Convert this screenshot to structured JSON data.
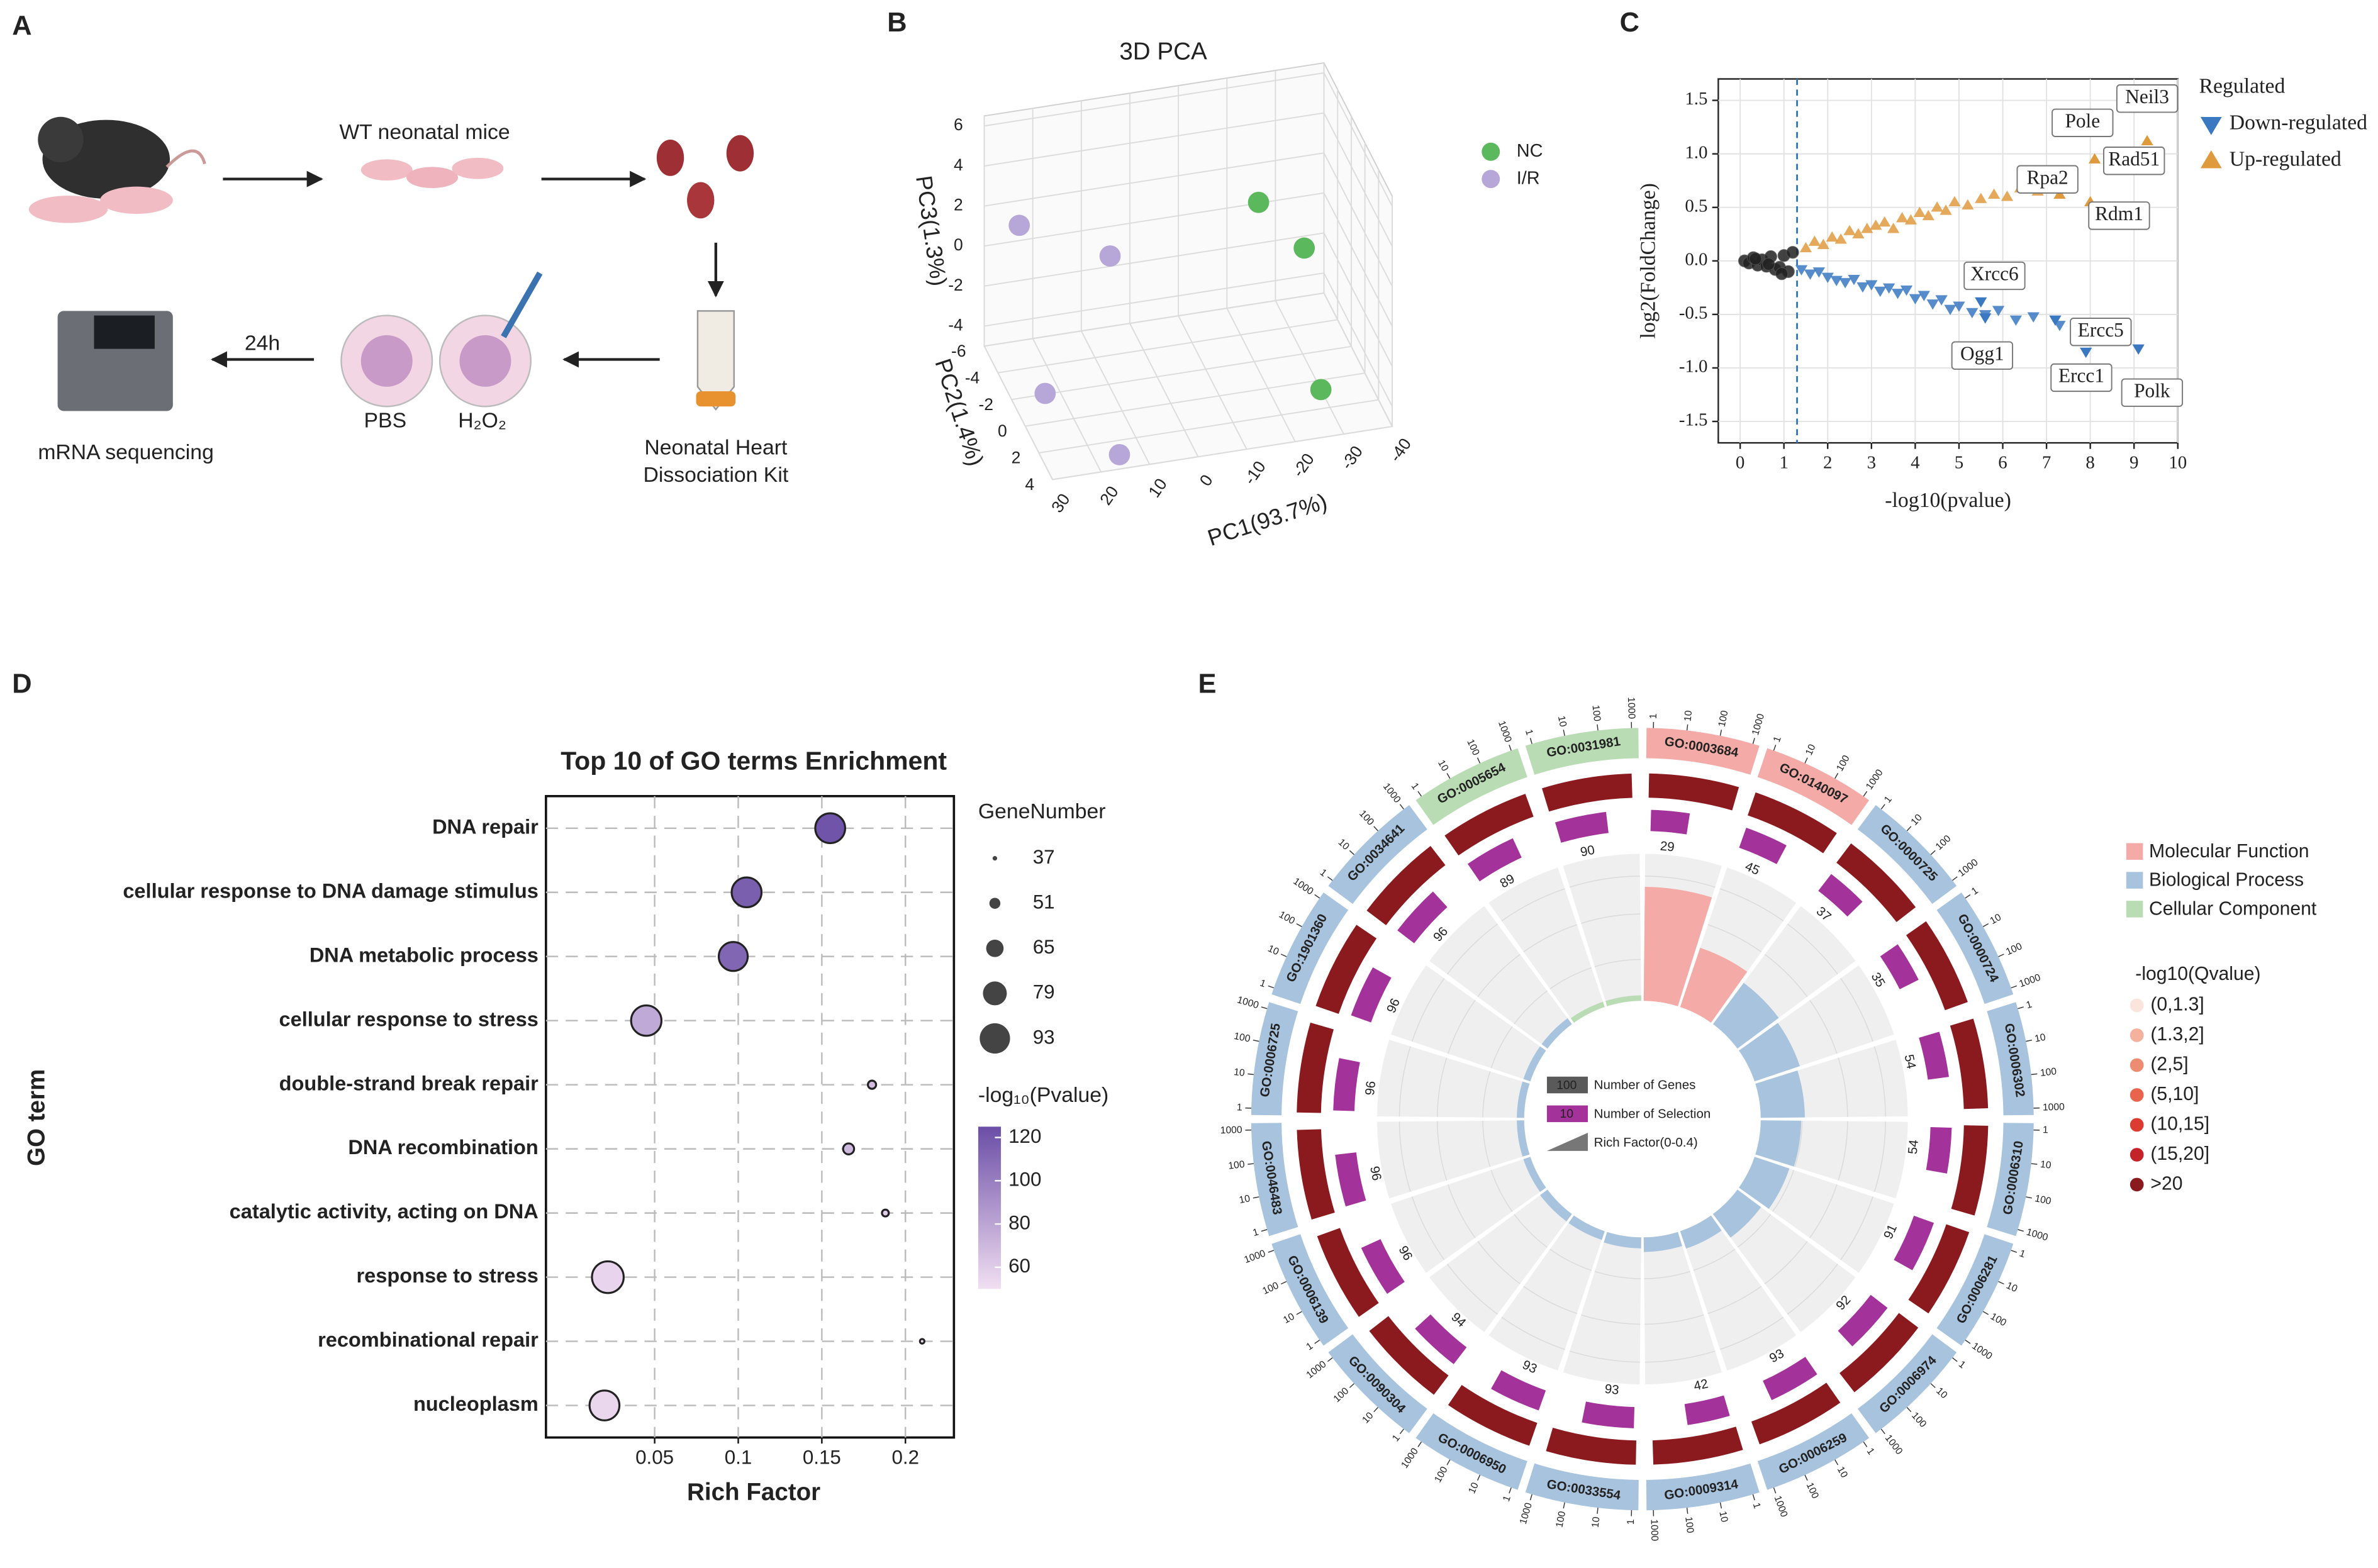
{
  "panel_labels": [
    "A",
    "B",
    "C",
    "D",
    "E"
  ],
  "workflow": {
    "mice": "WT neonatal mice",
    "kit": [
      "Neonatal Heart",
      "Dissociation Kit"
    ],
    "pbs": "PBS",
    "h2o2": "H₂O₂",
    "time": "24h",
    "seq": "mRNA sequencing"
  },
  "chart_data": [
    {
      "type": "scatter3d",
      "title": "3D PCA",
      "xlabel": "PC1(93.7%)",
      "ylabel": "PC2(1.4%)",
      "zlabel": "PC3(1.3%)",
      "xlim": [
        -40,
        30
      ],
      "ylim": [
        -6,
        4
      ],
      "zlim": [
        -5,
        6.5
      ],
      "xticks": [
        30,
        20,
        10,
        0,
        -10,
        -20,
        -30,
        -40
      ],
      "yticks": [
        -6,
        -4,
        -2,
        0,
        2,
        4
      ],
      "zticks": [
        -4,
        -2,
        0,
        2,
        4,
        6
      ],
      "series": [
        {
          "name": "NC",
          "color": "#5cb85c",
          "x": [
            -22.3,
            -28.9,
            -25.3
          ],
          "y": [
            -3,
            -1,
            4
          ],
          "z": [
            2.2,
            1.0,
            -2.6
          ]
        },
        {
          "name": "I/R",
          "color": "#b7a6d8",
          "x": [
            25.6,
            9.7,
            27.3,
            14.8
          ],
          "y": [
            -4,
            -2,
            1,
            3
          ],
          "z": [
            2.2,
            1.4,
            -2.8,
            -5.0
          ]
        }
      ]
    },
    {
      "type": "scatter",
      "xlabel": "-log10(pvalue)",
      "ylabel": "log2(FoldChange)",
      "xlim": [
        -0.5,
        10
      ],
      "ylim": [
        -1.7,
        1.7
      ],
      "xticks": [
        0,
        1,
        2,
        3,
        4,
        5,
        6,
        7,
        8,
        9,
        10
      ],
      "yticks": [
        -1.5,
        {
          "value": -1,
          "label": "-1.0"
        },
        -0.5,
        {
          "value": 0,
          "label": "0.0"
        },
        0.5,
        {
          "value": 1,
          "label": "1.0"
        },
        1.5
      ],
      "threshold_x": 1.3,
      "legend_title": "Regulated",
      "series": [
        {
          "color": "#222222",
          "marker": "circle",
          "x": [
            0.1,
            0.2,
            0.3,
            0.4,
            0.5,
            0.6,
            0.7,
            0.8,
            0.9,
            1.0,
            1.1,
            1.2,
            0.35,
            0.65,
            0.95
          ],
          "values": [
            0.0,
            -0.02,
            0.03,
            -0.04,
            0.01,
            -0.05,
            0.04,
            -0.08,
            -0.06,
            0.05,
            -0.1,
            0.08,
            0.02,
            -0.03,
            -0.12
          ]
        },
        {
          "name": "Down-regulated",
          "color": "#3a78c2",
          "marker": "triangle-down",
          "x": [
            1.4,
            1.6,
            1.8,
            2.0,
            2.2,
            2.4,
            2.6,
            2.8,
            3.0,
            3.2,
            3.4,
            3.6,
            3.8,
            4.0,
            4.2,
            4.4,
            4.6,
            4.8,
            5.0,
            5.3,
            5.6,
            5.9,
            6.3,
            6.7,
            7.3
          ],
          "values": [
            -0.08,
            -0.12,
            -0.1,
            -0.15,
            -0.18,
            -0.2,
            -0.17,
            -0.24,
            -0.22,
            -0.28,
            -0.25,
            -0.3,
            -0.27,
            -0.35,
            -0.32,
            -0.4,
            -0.36,
            -0.45,
            -0.42,
            -0.48,
            -0.5,
            -0.46,
            -0.55,
            -0.52,
            -0.6
          ]
        },
        {
          "name": "Up-regulated",
          "color": "#e09a3e",
          "marker": "triangle-up",
          "x": [
            1.5,
            1.7,
            1.9,
            2.1,
            2.3,
            2.5,
            2.7,
            2.9,
            3.1,
            3.3,
            3.5,
            3.7,
            3.9,
            4.1,
            4.3,
            4.5,
            4.7,
            4.9,
            5.2,
            5.5,
            5.8,
            6.1,
            6.4,
            6.8,
            7.2
          ],
          "values": [
            0.12,
            0.18,
            0.15,
            0.22,
            0.2,
            0.28,
            0.25,
            0.3,
            0.33,
            0.36,
            0.3,
            0.4,
            0.38,
            0.45,
            0.42,
            0.5,
            0.47,
            0.55,
            0.52,
            0.58,
            0.62,
            0.6,
            0.68,
            0.65,
            0.72
          ]
        }
      ],
      "annotations": [
        {
          "text": "Neil3",
          "x": 9.3,
          "y": 1.12,
          "series": 2
        },
        {
          "text": "Pole",
          "x": 8.1,
          "y": 0.95,
          "series": 2
        },
        {
          "text": "Rad51",
          "x": 9.0,
          "y": 0.85,
          "series": 2
        },
        {
          "text": "Rpa2",
          "x": 7.3,
          "y": 0.62,
          "series": 2
        },
        {
          "text": "Rdm1",
          "x": 8.0,
          "y": 0.55,
          "series": 2
        },
        {
          "text": "Xrcc6",
          "x": 5.5,
          "y": -0.38,
          "series": 1
        },
        {
          "text": "Ogg1",
          "x": 5.6,
          "y": -0.53,
          "series": 1
        },
        {
          "text": "Ercc5",
          "x": 7.2,
          "y": -0.55,
          "series": 1
        },
        {
          "text": "Ercc1",
          "x": 7.9,
          "y": -0.85,
          "series": 1
        },
        {
          "text": "Polk",
          "x": 9.1,
          "y": -0.82,
          "series": 1
        }
      ]
    },
    {
      "type": "bubble",
      "title": "Top 10 of GO terms Enrichment",
      "xlabel": "Rich Factor",
      "ylabel": "GO term",
      "categories": [
        "DNA repair",
        "cellular response to DNA damage stimulus",
        "DNA metabolic process",
        "cellular response to stress",
        "double-strand break repair",
        "DNA recombination",
        "catalytic activity, acting on DNA",
        "response to stress",
        "recombinational repair",
        "nucleoplasm"
      ],
      "values": [
        0.155,
        0.105,
        0.097,
        0.045,
        0.18,
        0.166,
        0.188,
        0.022,
        0.21,
        0.02
      ],
      "sizes": [
        92,
        92,
        90,
        93,
        45,
        51,
        42,
        96,
        37,
        92
      ],
      "pvalues": [
        122,
        116,
        112,
        78,
        68,
        70,
        60,
        55,
        52,
        54
      ],
      "xlim": [
        -0.015,
        0.229
      ],
      "xticks": [
        0.05,
        0.1,
        0.15,
        0.2
      ],
      "grid": true,
      "size_legend_title": "GeneNumber",
      "size_legend": [
        37,
        51,
        65,
        79,
        93
      ],
      "color_legend_title": "-log₁₀(Pvalue)",
      "color_lim": [
        50,
        125
      ],
      "color_ticks": [
        60,
        80,
        100,
        120
      ],
      "color_range": [
        "#f1dff2",
        "#6a4ea6"
      ]
    },
    {
      "type": "circos",
      "groups": [
        {
          "name": "Molecular Function",
          "color": "#f4aaa6"
        },
        {
          "name": "Biological Process",
          "color": "#a8c3dd"
        },
        {
          "name": "Cellular Component",
          "color": "#badcb4"
        }
      ],
      "terms": [
        "GO:0003684",
        "GO:0140097",
        "GO:0000725",
        "GO:0000724",
        "GO:0006302",
        "GO:0006310",
        "GO:0006281",
        "GO:0006974",
        "GO:0006259",
        "GO:0009314",
        "GO:0033554",
        "GO:0006950",
        "GO:0090304",
        "GO:0006139",
        "GO:0046483",
        "GO:0006725",
        "GO:1901360",
        "GO:0034641",
        "GO:0005654",
        "GO:0031981"
      ],
      "term_groups": [
        0,
        0,
        1,
        1,
        1,
        1,
        1,
        1,
        1,
        1,
        1,
        1,
        1,
        1,
        1,
        1,
        1,
        1,
        2,
        2
      ],
      "selection": [
        29,
        45,
        37,
        35,
        54,
        54,
        91,
        92,
        93,
        42,
        93,
        93,
        94,
        96,
        96,
        96,
        96,
        96,
        89,
        90
      ],
      "rich_factor": [
        0.31,
        0.17,
        0.14,
        0.13,
        0.12,
        0.11,
        0.1,
        0.08,
        0.05,
        0.04,
        0.03,
        0.025,
        0.025,
        0.02,
        0.02,
        0.02,
        0.02,
        0.02,
        0.015,
        0.015
      ],
      "rich_lim": [
        0,
        0.4
      ],
      "scale_ticks": [
        1,
        10,
        100,
        1000
      ],
      "qvalue_title": "-log10(Qvalue)",
      "qvalue_bins": [
        "(0,1.3]",
        "(1.3,2]",
        "(2,5]",
        "(5,10]",
        "(10,15]",
        "(15,20]",
        ">20"
      ],
      "qvalue_colors": [
        "#fbe4dc",
        "#f4b29e",
        "#ee8c72",
        "#e8644c",
        "#dc3b2f",
        "#c4232a",
        "#8b1a1e"
      ],
      "term_qbin": [
        6,
        6,
        6,
        6,
        6,
        6,
        6,
        6,
        6,
        6,
        6,
        6,
        6,
        6,
        6,
        6,
        6,
        6,
        6,
        6
      ],
      "selection_color": "#a3329a",
      "inner_legend": {
        "genes_sample": "100",
        "genes": "Number of Genes",
        "selection_sample": "10",
        "selection": "Number of Selection",
        "rich": "Rich Factor(0-0.4)"
      }
    }
  ]
}
